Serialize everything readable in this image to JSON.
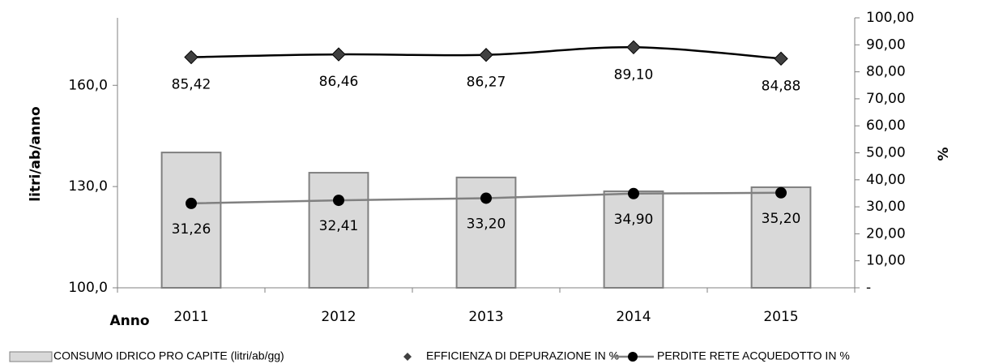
{
  "chart_data": {
    "type": "bar-line",
    "x_label": "Anno",
    "y_label": "litri/ab/anno",
    "y2_label": "%",
    "categories": [
      "2011",
      "2012",
      "2013",
      "2014",
      "2015"
    ],
    "ylim": [
      100,
      180
    ],
    "yticks": [
      {
        "value": 100,
        "label": "100,0"
      },
      {
        "value": 130,
        "label": "130,0"
      },
      {
        "value": 160,
        "label": "160,0"
      }
    ],
    "y2lim": [
      0,
      100
    ],
    "y2ticks": [
      {
        "value": 0,
        "label": "-"
      },
      {
        "value": 10,
        "label": "10,00"
      },
      {
        "value": 20,
        "label": "20,00"
      },
      {
        "value": 30,
        "label": "30,00"
      },
      {
        "value": 40,
        "label": "40,00"
      },
      {
        "value": 50,
        "label": "50,00"
      },
      {
        "value": 60,
        "label": "60,00"
      },
      {
        "value": 70,
        "label": "70,00"
      },
      {
        "value": 80,
        "label": "80,00"
      },
      {
        "value": 90,
        "label": "90,00"
      },
      {
        "value": 100,
        "label": "100,00"
      }
    ],
    "series": [
      {
        "name": "CONSUMO IDRICO PRO CAPITE (litri/ab/gg)",
        "type": "bar",
        "color": "#d9d9d9",
        "values": [
          140.1,
          134.1,
          132.7,
          128.6,
          129.8
        ]
      },
      {
        "name": "EFFICIENZA DI DEPURAZIONE IN %",
        "type": "line",
        "axis": "y2",
        "marker": "diamond",
        "color": "#000000",
        "values": [
          85.42,
          86.46,
          86.27,
          89.1,
          84.88
        ],
        "value_labels": [
          "85,42",
          "86,46",
          "86,27",
          "89,10",
          "84,88"
        ]
      },
      {
        "name": "PERDITE RETE ACQUEDOTTO IN %",
        "type": "line",
        "axis": "y2",
        "marker": "circle",
        "color": "#808080",
        "values": [
          31.26,
          32.41,
          33.2,
          34.9,
          35.2
        ],
        "value_labels": [
          "31,26",
          "32,41",
          "33,20",
          "34,90",
          "35,20"
        ]
      }
    ]
  }
}
